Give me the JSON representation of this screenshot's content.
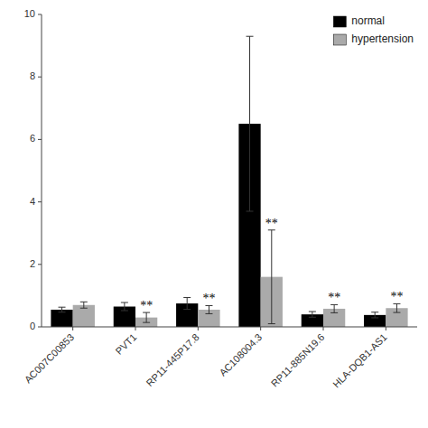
{
  "chart_data": {
    "type": "bar",
    "categories": [
      "AC007C00853",
      "PVT1",
      "RP11-445P17.8",
      "AC108004.3",
      "RP11-885N19.6",
      "HLA-DQB1-AS1"
    ],
    "series": [
      {
        "name": "normal",
        "color": "#000000",
        "values": [
          0.55,
          0.65,
          0.75,
          6.5,
          0.4,
          0.38
        ],
        "errors": [
          0.08,
          0.13,
          0.19,
          2.8,
          0.09,
          0.09
        ]
      },
      {
        "name": "hypertension",
        "color": "#aaaaaa",
        "values": [
          0.7,
          0.3,
          0.55,
          1.6,
          0.58,
          0.6
        ],
        "errors": [
          0.1,
          0.16,
          0.13,
          1.5,
          0.13,
          0.14
        ]
      }
    ],
    "annotations": [
      {
        "text": "**",
        "category": "PVT1",
        "series": "hypertension"
      },
      {
        "text": "**",
        "category": "RP11-445P17.8",
        "series": "hypertension"
      },
      {
        "text": "**",
        "category": "AC108004.3",
        "series": "hypertension"
      },
      {
        "text": "**",
        "category": "RP11-885N19.6",
        "series": "hypertension"
      },
      {
        "text": "**",
        "category": "HLA-DQB1-AS1",
        "series": "hypertension"
      }
    ],
    "ylim": [
      0,
      10
    ],
    "yticks": [
      0,
      2,
      4,
      6,
      8,
      10
    ],
    "grid": false,
    "legend": "upper right"
  }
}
